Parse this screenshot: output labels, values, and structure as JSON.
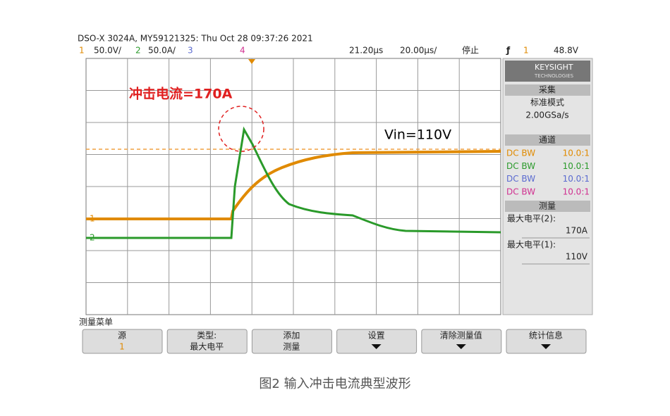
{
  "header": {
    "title": "DSO-X 3024A, MY59121325: Thu Oct 28 09:37:26 2021"
  },
  "status_bar": {
    "ch1_num": "1",
    "ch1_scale": "50.0V/",
    "ch2_num": "2",
    "ch2_scale": "50.0A/",
    "ch3_num": "3",
    "ch4_num": "4",
    "time_delay": "21.20µs",
    "time_scale": "20.00µs/",
    "run_state": "停止",
    "trigger_source": "1",
    "trigger_level": "48.8V"
  },
  "screen": {
    "annotation_peak": "冲击电流=170A",
    "annotation_vin": "Vin=110V",
    "ch1_marker": "1",
    "ch2_marker": "2"
  },
  "side_panel": {
    "brand": "KEYSIGHT",
    "brand_sub": "TECHNOLOGIES",
    "acquire_header": "采集",
    "acquire_mode": "标准模式",
    "sample_rate": "2.00GSa/s",
    "channels_header": "通道",
    "channels": [
      {
        "coupling": "DC BW",
        "probe": "10.0:1"
      },
      {
        "coupling": "DC BW",
        "probe": "10.0:1"
      },
      {
        "coupling": "DC BW",
        "probe": "10.0:1"
      },
      {
        "coupling": "DC BW",
        "probe": "10.0:1"
      }
    ],
    "measure_header": "测量",
    "measurements": [
      {
        "label": "最大电平(2):",
        "value": "170A"
      },
      {
        "label": "最大电平(1):",
        "value": "110V"
      }
    ]
  },
  "menu": {
    "title": "测量菜单",
    "buttons": [
      {
        "line1": "源",
        "line2": "1"
      },
      {
        "line1": "类型:",
        "line2": "最大电平"
      },
      {
        "line1": "添加",
        "line2": "测量"
      },
      {
        "line1": "设置"
      },
      {
        "line1": "清除测量值"
      },
      {
        "line1": "统计信息"
      }
    ]
  },
  "caption": "图2 输入冲击电流典型波形"
}
